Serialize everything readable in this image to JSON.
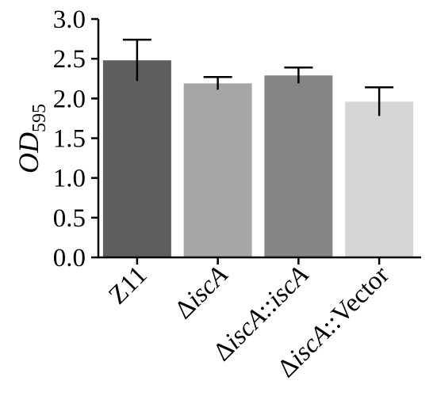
{
  "chart_data": {
    "type": "bar",
    "title": "",
    "xlabel": "",
    "ylabel": {
      "main": "OD",
      "subscript": "595"
    },
    "ylim": [
      0,
      3.0
    ],
    "yticks": [
      "0.0",
      "0.5",
      "1.0",
      "1.5",
      "2.0",
      "2.5",
      "3.0"
    ],
    "grid": false,
    "categories": [
      {
        "parts": [
          {
            "t": "Z11",
            "italic": false
          }
        ]
      },
      {
        "parts": [
          {
            "t": "Δ",
            "italic": false
          },
          {
            "t": "iscA",
            "italic": true
          }
        ]
      },
      {
        "parts": [
          {
            "t": "Δ",
            "italic": false
          },
          {
            "t": "iscA",
            "italic": true
          },
          {
            "t": "::",
            "italic": false
          },
          {
            "t": "iscA",
            "italic": true
          }
        ]
      },
      {
        "parts": [
          {
            "t": "Δ",
            "italic": false
          },
          {
            "t": "iscA",
            "italic": true
          },
          {
            "t": "::Vector",
            "italic": false
          }
        ]
      }
    ],
    "values": [
      2.48,
      2.19,
      2.29,
      1.96
    ],
    "errors": [
      0.26,
      0.08,
      0.1,
      0.18
    ],
    "colors": [
      "#5e5e5e",
      "#a6a6a8",
      "#858585",
      "#d6d6d6"
    ]
  }
}
